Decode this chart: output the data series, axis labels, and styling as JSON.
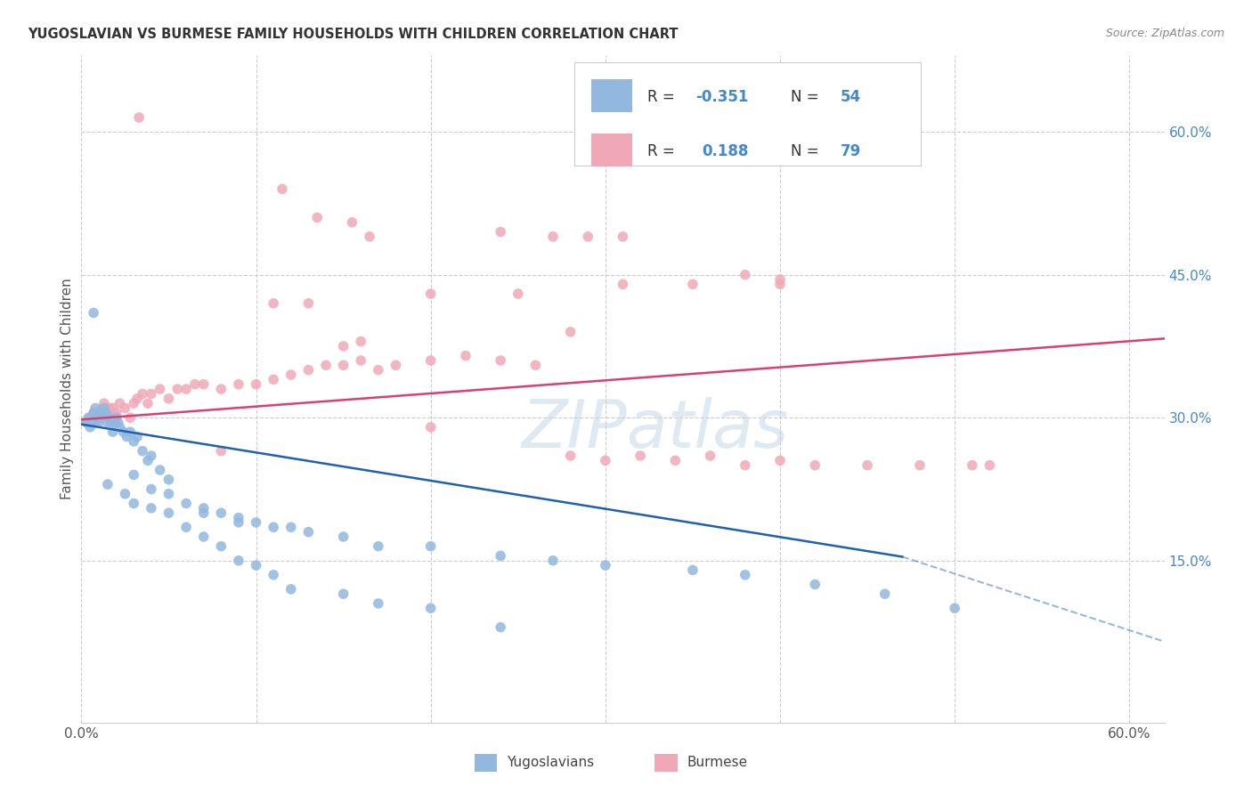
{
  "title": "YUGOSLAVIAN VS BURMESE FAMILY HOUSEHOLDS WITH CHILDREN CORRELATION CHART",
  "source": "Source: ZipAtlas.com",
  "ylabel": "Family Households with Children",
  "legend_R_yugo": "-0.351",
  "legend_N_yugo": "54",
  "legend_R_burm": "0.188",
  "legend_N_burm": "79",
  "yugo_color": "#92b8e0",
  "burm_color": "#f0a8b8",
  "yugo_line_color": "#2060b0",
  "burm_line_color": "#d84070",
  "text_blue": "#4488cc",
  "grid_color": "#cccccc",
  "watermark": "ZIPatlas",
  "xlim": [
    0.0,
    0.62
  ],
  "ylim": [
    -0.02,
    0.68
  ],
  "y_ticks_right": [
    0.15,
    0.3,
    0.45,
    0.6
  ],
  "y_tick_labels_right": [
    "15.0%",
    "30.0%",
    "45.0%",
    "60.0%"
  ],
  "yugo_scatter_x": [
    0.003,
    0.004,
    0.005,
    0.006,
    0.007,
    0.008,
    0.009,
    0.01,
    0.011,
    0.012,
    0.013,
    0.014,
    0.015,
    0.016,
    0.017,
    0.018,
    0.019,
    0.02,
    0.021,
    0.022,
    0.024,
    0.026,
    0.028,
    0.03,
    0.032,
    0.035,
    0.038,
    0.04,
    0.045,
    0.05,
    0.06,
    0.07,
    0.08,
    0.09,
    0.1,
    0.11,
    0.12,
    0.13,
    0.15,
    0.17,
    0.2,
    0.24,
    0.27,
    0.3,
    0.35,
    0.38,
    0.42,
    0.46,
    0.5,
    0.03,
    0.04,
    0.05,
    0.07,
    0.09
  ],
  "yugo_scatter_y": [
    0.295,
    0.3,
    0.29,
    0.295,
    0.305,
    0.31,
    0.3,
    0.295,
    0.305,
    0.3,
    0.31,
    0.305,
    0.295,
    0.3,
    0.295,
    0.285,
    0.295,
    0.3,
    0.295,
    0.29,
    0.285,
    0.28,
    0.285,
    0.275,
    0.28,
    0.265,
    0.255,
    0.26,
    0.245,
    0.235,
    0.21,
    0.205,
    0.2,
    0.195,
    0.19,
    0.185,
    0.185,
    0.18,
    0.175,
    0.165,
    0.165,
    0.155,
    0.15,
    0.145,
    0.14,
    0.135,
    0.125,
    0.115,
    0.1,
    0.24,
    0.225,
    0.22,
    0.2,
    0.19
  ],
  "yugo_low_x": [
    0.015,
    0.025,
    0.03,
    0.04,
    0.05,
    0.06,
    0.07,
    0.08,
    0.09,
    0.1,
    0.11,
    0.12,
    0.15,
    0.17,
    0.2,
    0.24
  ],
  "yugo_low_y": [
    0.23,
    0.22,
    0.21,
    0.205,
    0.2,
    0.185,
    0.175,
    0.165,
    0.15,
    0.145,
    0.135,
    0.12,
    0.115,
    0.105,
    0.1,
    0.08
  ],
  "yugo_veryhigh_x": [
    0.007
  ],
  "yugo_veryhigh_y": [
    0.41
  ],
  "burm_scatter_x": [
    0.003,
    0.005,
    0.007,
    0.008,
    0.01,
    0.012,
    0.013,
    0.015,
    0.016,
    0.018,
    0.02,
    0.022,
    0.025,
    0.028,
    0.03,
    0.032,
    0.035,
    0.038,
    0.04,
    0.045,
    0.05,
    0.055,
    0.06,
    0.065,
    0.07,
    0.08,
    0.09,
    0.1,
    0.11,
    0.12,
    0.13,
    0.14,
    0.15,
    0.16,
    0.17,
    0.18,
    0.2,
    0.22,
    0.24,
    0.26,
    0.28,
    0.3,
    0.32,
    0.34,
    0.36,
    0.38,
    0.4,
    0.42,
    0.45,
    0.48,
    0.52
  ],
  "burm_scatter_y": [
    0.295,
    0.3,
    0.305,
    0.295,
    0.305,
    0.31,
    0.315,
    0.305,
    0.31,
    0.31,
    0.305,
    0.315,
    0.31,
    0.3,
    0.315,
    0.32,
    0.325,
    0.315,
    0.325,
    0.33,
    0.32,
    0.33,
    0.33,
    0.335,
    0.335,
    0.33,
    0.335,
    0.335,
    0.34,
    0.345,
    0.35,
    0.355,
    0.355,
    0.36,
    0.35,
    0.355,
    0.36,
    0.365,
    0.36,
    0.355,
    0.26,
    0.255,
    0.26,
    0.255,
    0.26,
    0.25,
    0.255,
    0.25,
    0.25,
    0.25,
    0.25
  ],
  "burm_high_x": [
    0.033,
    0.115,
    0.135,
    0.155,
    0.165,
    0.24,
    0.27,
    0.29,
    0.35,
    0.38,
    0.4,
    0.31,
    0.31,
    0.4,
    0.2,
    0.25,
    0.13,
    0.11,
    0.28,
    0.16,
    0.15,
    0.2,
    0.08,
    0.51
  ],
  "burm_high_y": [
    0.615,
    0.54,
    0.51,
    0.505,
    0.49,
    0.495,
    0.49,
    0.49,
    0.44,
    0.45,
    0.44,
    0.49,
    0.44,
    0.445,
    0.43,
    0.43,
    0.42,
    0.42,
    0.39,
    0.38,
    0.375,
    0.29,
    0.265,
    0.25
  ],
  "yugo_line_x0": 0.0,
  "yugo_line_y0": 0.293,
  "yugo_line_x1_solid": 0.47,
  "yugo_line_y1_solid": 0.154,
  "yugo_line_x1_dash": 0.62,
  "yugo_line_y1_dash": 0.065,
  "burm_line_x0": 0.0,
  "burm_line_y0": 0.298,
  "burm_line_x1": 0.62,
  "burm_line_y1": 0.383
}
